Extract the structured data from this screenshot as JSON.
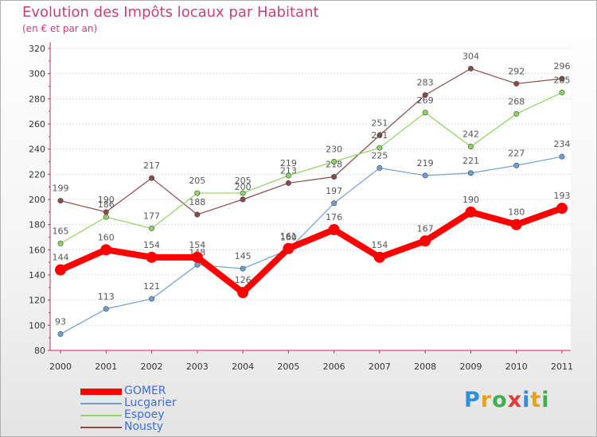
{
  "header": {
    "title": "Evolution des Impôts locaux par Habitant",
    "subtitle": "(en € et par an)"
  },
  "brand": {
    "letters": [
      "P",
      "r",
      "o",
      "x",
      "i",
      "t",
      "i"
    ],
    "colors": [
      "#2f8fd8",
      "#e8a020",
      "#3cb04c",
      "#e03a3a",
      "#2f8fd8",
      "#e8a020",
      "#3cb04c"
    ]
  },
  "chart_data": {
    "type": "line",
    "title": "Evolution des Impôts locaux par Habitant",
    "ylabel": "(en € et par an)",
    "xlabel": "",
    "ylim": [
      80,
      320
    ],
    "yticks": [
      80,
      100,
      120,
      140,
      160,
      180,
      200,
      220,
      240,
      260,
      280,
      300,
      320
    ],
    "grid": "horizontal",
    "legend_position": "bottom-left",
    "categories": [
      "2000",
      "2001",
      "2002",
      "2003",
      "2004",
      "2005",
      "2006",
      "2007",
      "2008",
      "2009",
      "2010",
      "2011"
    ],
    "series": [
      {
        "name": "GOMER",
        "color": "#ff0000",
        "values": [
          144,
          160,
          154,
          154,
          126,
          161,
          176,
          154,
          167,
          190,
          180,
          193
        ]
      },
      {
        "name": "Lucgarier",
        "color": "#6f9fd0",
        "values": [
          93,
          113,
          121,
          148,
          145,
          160,
          197,
          225,
          219,
          221,
          227,
          234
        ]
      },
      {
        "name": "Espoey",
        "color": "#8ed460",
        "values": [
          165,
          186,
          177,
          205,
          205,
          219,
          230,
          241,
          269,
          242,
          268,
          285
        ]
      },
      {
        "name": "Nousty",
        "color": "#8a4a4a",
        "values": [
          199,
          190,
          217,
          188,
          200,
          213,
          218,
          251,
          283,
          304,
          292,
          296
        ]
      }
    ]
  }
}
